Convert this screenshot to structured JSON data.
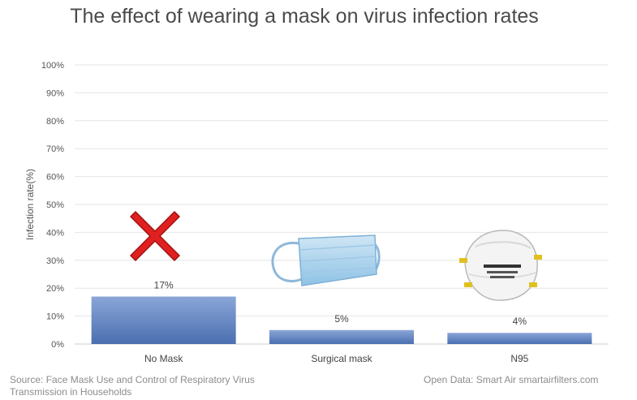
{
  "title": "The effect of wearing a mask on virus infection rates",
  "source_left": "Source: Face Mask Use and Control of Respiratory Virus Transmission in Households",
  "source_right": "Open Data: Smart Air smartairfilters.com",
  "icons": [
    "red-x-icon",
    "surgical-mask-icon",
    "n95-mask-icon"
  ],
  "colors": {
    "bar_top": "#8aa6d8",
    "bar_bottom": "#4a6fb0",
    "grid": "#e6e6e6",
    "cross": "#e02020"
  },
  "chart_data": {
    "type": "bar",
    "title": "The effect of wearing a mask on virus infection rates",
    "xlabel": "",
    "ylabel": "Infection rate(%)",
    "categories": [
      "No Mask",
      "Surgical mask",
      "N95"
    ],
    "values": [
      17,
      5,
      4
    ],
    "value_labels": [
      "17%",
      "5%",
      "4%"
    ],
    "ylim": [
      0,
      100
    ],
    "yticks": [
      0,
      10,
      20,
      30,
      40,
      50,
      60,
      70,
      80,
      90,
      100
    ],
    "ytick_labels": [
      "0%",
      "10%",
      "20%",
      "30%",
      "40%",
      "50%",
      "60%",
      "70%",
      "80%",
      "90%",
      "100%"
    ],
    "grid": true,
    "legend": "none"
  }
}
